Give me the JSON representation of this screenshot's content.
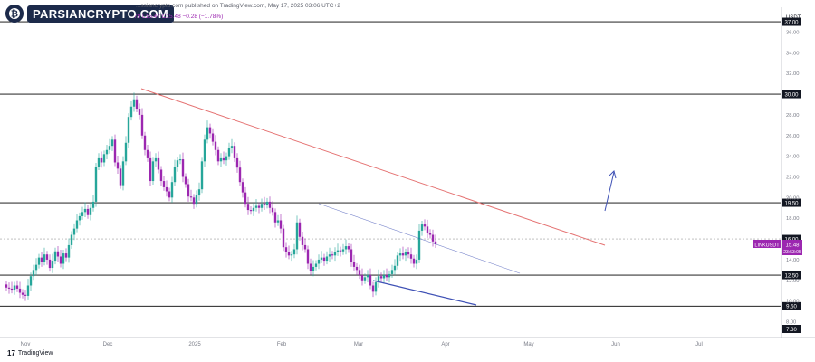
{
  "header": {
    "logo_text": "PARSIANCRYPTO.COM",
    "logo_icon": "bitcoin-logo-icon",
    "publish_line": "...ssiancrypto.com published on TradingView.com, May 17, 2025 03:06 UTC+2",
    "ohlc_line": "79 L15.47 C15.48 −0.28 (−1.78%)"
  },
  "footer": {
    "brand": "TradingView",
    "brand_icon": "tradingview-logo-icon"
  },
  "colors": {
    "up": "#26a69a",
    "down": "#9c27b0",
    "resistance": "#e57373",
    "channel": "#3f51b5",
    "level": "#000000",
    "price_label": "#9c27b0"
  },
  "chart_data": {
    "type": "candlestick",
    "symbol_label": "LINKUSDT",
    "current_price": "15.48",
    "countdown": "23:53:05",
    "axis_unit": "USDT",
    "x_tick_labels": [
      "Nov",
      "Dec",
      "2025",
      "Feb",
      "Mar",
      "Apr",
      "May",
      "Jun",
      "Jul"
    ],
    "y_tick_labels": [
      "8.00",
      "10.00",
      "12.00",
      "14.00",
      "18.00",
      "20.00",
      "22.00",
      "24.00",
      "26.00",
      "28.00",
      "32.00",
      "34.00",
      "36.00"
    ],
    "ylim": [
      6.8,
      38
    ],
    "levels": [
      "7.30",
      "9.50",
      "12.50",
      "16.00",
      "19.50",
      "30.00",
      "37.00"
    ],
    "closes": [
      11.3,
      11.2,
      11.1,
      11.5,
      11.2,
      10.8,
      10.6,
      10.5,
      11.5,
      12.4,
      13.0,
      13.5,
      14.2,
      13.8,
      14.5,
      14.0,
      13.2,
      13.9,
      14.8,
      14.3,
      13.6,
      14.6,
      14.2,
      15.4,
      16.4,
      17.0,
      17.8,
      18.2,
      18.6,
      18.9,
      18.3,
      19.0,
      19.6,
      23.0,
      23.8,
      23.4,
      24.2,
      24.6,
      25.0,
      25.6,
      23.4,
      22.8,
      21.2,
      23.5,
      25.3,
      27.8,
      28.8,
      29.5,
      28.6,
      28.0,
      26.0,
      24.6,
      23.8,
      21.6,
      23.5,
      23.8,
      22.7,
      21.6,
      21.0,
      20.6,
      20.0,
      21.5,
      23.0,
      23.6,
      23.7,
      22.0,
      21.3,
      20.1,
      20.0,
      19.4,
      20.2,
      20.8,
      23.5,
      25.6,
      26.8,
      26.2,
      25.4,
      24.6,
      23.5,
      23.8,
      23.6,
      24.0,
      24.8,
      25.0,
      23.8,
      22.9,
      21.5,
      20.5,
      19.4,
      18.8,
      18.7,
      19.0,
      19.2,
      19.0,
      19.4,
      19.3,
      19.6,
      19.0,
      18.6,
      17.6,
      17.8,
      17.0,
      15.2,
      14.7,
      14.4,
      14.5,
      15.0,
      17.6,
      16.2,
      15.4,
      15.0,
      13.6,
      12.9,
      13.3,
      13.6,
      14.0,
      14.2,
      13.9,
      14.3,
      14.5,
      14.4,
      14.7,
      14.9,
      14.8,
      15.0,
      15.3,
      15.0,
      13.8,
      13.3,
      13.0,
      12.5,
      12.0,
      12.3,
      12.5,
      11.5,
      10.9,
      11.8,
      12.4,
      12.2,
      12.5,
      12.3,
      12.6,
      13.0,
      13.4,
      14.4,
      14.6,
      14.4,
      14.7,
      14.5,
      14.1,
      13.6,
      14.0,
      16.8,
      17.4,
      17.2,
      16.6,
      16.4,
      15.76,
      15.48
    ]
  }
}
